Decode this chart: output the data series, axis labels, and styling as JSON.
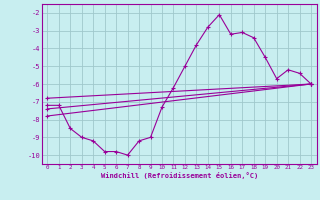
{
  "xlabel": "Windchill (Refroidissement éolien,°C)",
  "xlim": [
    -0.5,
    23.5
  ],
  "ylim": [
    -10.5,
    -1.5
  ],
  "yticks": [
    -10,
    -9,
    -8,
    -7,
    -6,
    -5,
    -4,
    -3,
    -2
  ],
  "xticks": [
    0,
    1,
    2,
    3,
    4,
    5,
    6,
    7,
    8,
    9,
    10,
    11,
    12,
    13,
    14,
    15,
    16,
    17,
    18,
    19,
    20,
    21,
    22,
    23
  ],
  "bg_color": "#c8eef0",
  "line_color": "#990099",
  "grid_color": "#a0c8cc",
  "line1_x": [
    0,
    1,
    2,
    3,
    4,
    5,
    6,
    7,
    8,
    9,
    10,
    11,
    12,
    13,
    14,
    15,
    16,
    17,
    18,
    19,
    20,
    21,
    22,
    23
  ],
  "line1_y": [
    -7.2,
    -7.2,
    -8.5,
    -9.0,
    -9.2,
    -9.8,
    -9.8,
    -10.0,
    -9.2,
    -9.0,
    -7.3,
    -6.2,
    -5.0,
    -3.8,
    -2.8,
    -2.1,
    -3.2,
    -3.1,
    -3.4,
    -4.5,
    -5.7,
    -5.2,
    -5.4,
    -6.0
  ],
  "line2_x": [
    0,
    23
  ],
  "line2_y": [
    -6.8,
    -6.0
  ],
  "line3_x": [
    0,
    23
  ],
  "line3_y": [
    -7.4,
    -6.0
  ],
  "line4_x": [
    0,
    23
  ],
  "line4_y": [
    -7.8,
    -6.0
  ]
}
